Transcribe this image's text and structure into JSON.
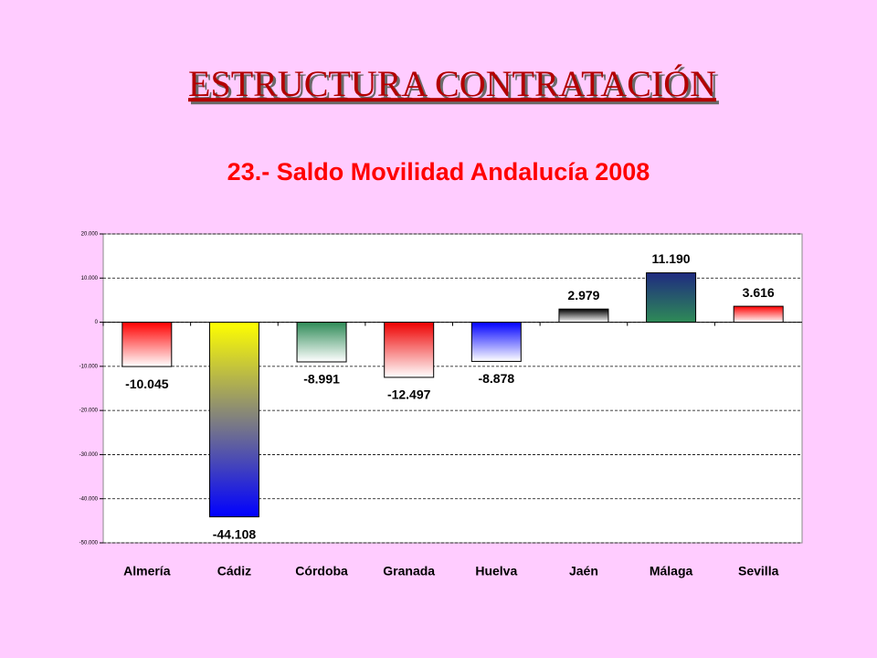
{
  "slide_title": "ESTRUCTURA CONTRATACIÓN",
  "chart_data": {
    "type": "bar",
    "title": "23.- Saldo Movilidad Andalucía 2008",
    "categories": [
      "Almería",
      "Cádiz",
      "Córdoba",
      "Granada",
      "Huelva",
      "Jaén",
      "Málaga",
      "Sevilla"
    ],
    "values": [
      -10045,
      -44108,
      -8991,
      -12497,
      -8878,
      2979,
      11190,
      3616
    ],
    "value_labels": [
      "-10.045",
      "-44.108",
      "-8.991",
      "-12.497",
      "-8.878",
      "2.979",
      "11.190",
      "3.616"
    ],
    "colors": [
      [
        "#ff0000",
        "#ffffff"
      ],
      [
        "#ffff00",
        "#0000ff"
      ],
      [
        "#2e8b57",
        "#ffffff"
      ],
      [
        "#ee0000",
        "#ffffff"
      ],
      [
        "#0000ff",
        "#ffffff"
      ],
      [
        "#000000",
        "#ffffff"
      ],
      [
        "#1f2a80",
        "#2e8b57"
      ],
      [
        "#ff0000",
        "#ffffff"
      ]
    ],
    "ylim": [
      -50000,
      20000
    ],
    "yticks": [
      {
        "value": -50000,
        "label": "-50.000"
      },
      {
        "value": -40000,
        "label": "-40.000"
      },
      {
        "value": -30000,
        "label": "-30.000"
      },
      {
        "value": -20000,
        "label": "-20.000"
      },
      {
        "value": -10000,
        "label": "-10.000"
      },
      0,
      {
        "value": 10000,
        "label": "10.000"
      },
      {
        "value": 20000,
        "label": "20.000"
      }
    ],
    "grid": true
  }
}
